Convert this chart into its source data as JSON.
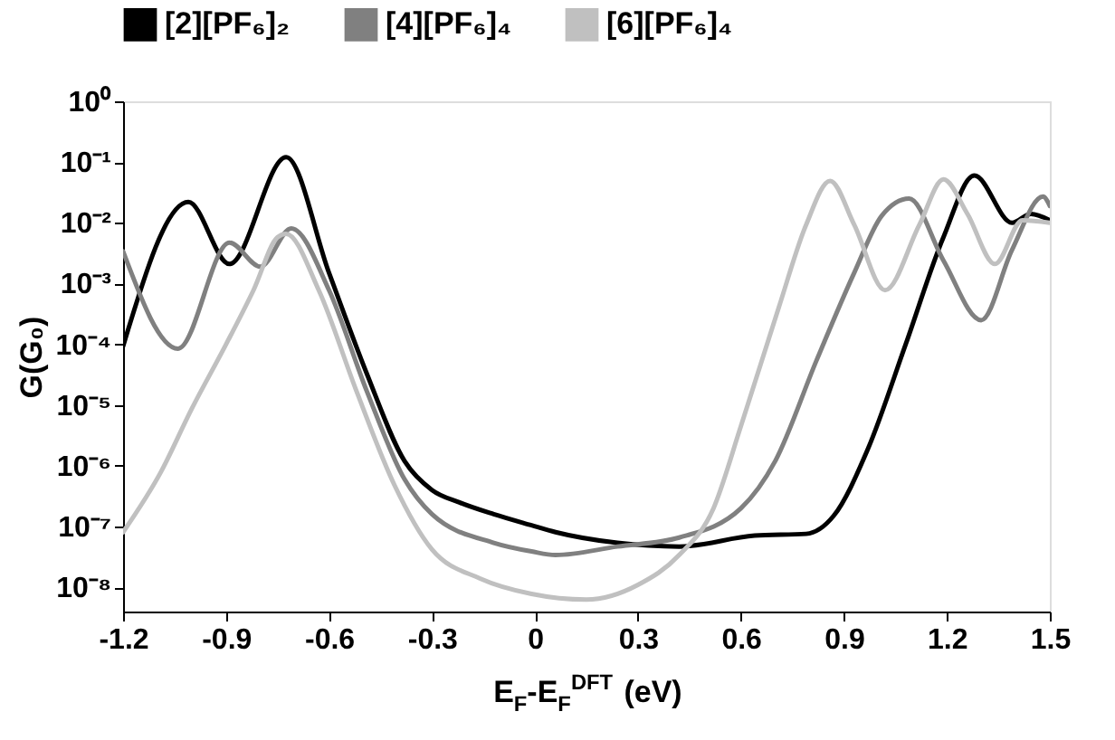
{
  "chart_data": {
    "type": "line",
    "xlabel": "E$_{F}$-E$_{F}$$^{DFT}$ (eV)",
    "ylabel": "G(G₀)",
    "log": "y",
    "grid": false,
    "legend": "top",
    "marker": "none",
    "line_style": "solid",
    "xlim": [
      -1.2,
      1.5
    ],
    "xticks": [
      -1.2,
      -0.9,
      -0.6,
      -0.3,
      0,
      0.3,
      0.6,
      0.9,
      1.2,
      1.5
    ],
    "ylim": [
      4e-09,
      1
    ],
    "yticks": [
      {
        "value": 1e-08,
        "label": "10⁻⁸"
      },
      {
        "value": 1e-07,
        "label": "10⁻⁷"
      },
      {
        "value": 1e-06,
        "label": "10⁻⁶"
      },
      {
        "value": 1e-05,
        "label": "10⁻⁵"
      },
      {
        "value": 0.0001,
        "label": "10⁻⁴"
      },
      {
        "value": 0.001,
        "label": "10⁻³"
      },
      {
        "value": 0.01,
        "label": "10⁻²"
      },
      {
        "value": 0.1,
        "label": "10⁻¹"
      },
      {
        "value": 1,
        "label": "10⁰"
      }
    ],
    "series": [
      {
        "name": "[2][PF₆]₂",
        "color": "#000000",
        "x": [
          -1.2,
          -1.01,
          -0.89,
          -0.725,
          -0.6,
          -0.49,
          -0.38,
          -0.3,
          -0.22,
          -0.12,
          -0.01,
          0.06,
          0.24,
          0.42,
          0.64,
          0.79,
          0.87,
          0.97,
          1.08,
          1.19,
          1.28,
          1.39,
          1.445,
          1.5
        ],
        "values": [
          9.3e-05,
          0.022,
          0.0021,
          0.12,
          0.0015,
          3.3e-05,
          1.2e-06,
          4e-07,
          2.5e-07,
          1.6e-07,
          1.05e-07,
          8.1e-08,
          5.4e-08,
          4.7e-08,
          7.1e-08,
          7.6e-08,
          1.5e-07,
          1.9e-06,
          0.0001,
          0.0058,
          0.06,
          0.01,
          0.014,
          0.011
        ]
      },
      {
        "name": "[4][PF₆]₄",
        "color": "#808080",
        "x": [
          -1.2,
          -1.04,
          -0.89,
          -0.8,
          -0.71,
          -0.6,
          -0.49,
          -0.38,
          -0.3,
          -0.12,
          -0.01,
          0.06,
          0.24,
          0.42,
          0.6,
          0.7,
          0.82,
          0.93,
          1.01,
          1.09,
          1.19,
          1.3,
          1.39,
          1.48,
          1.5
        ],
        "values": [
          0.0034,
          8.5e-05,
          0.0047,
          0.0019,
          0.0081,
          0.00078,
          1.7e-05,
          6e-07,
          1.6e-07,
          5.4e-08,
          3.9e-08,
          3.4e-08,
          4.7e-08,
          6.6e-08,
          2e-07,
          1.2e-06,
          5.4e-05,
          0.0015,
          0.013,
          0.025,
          0.0024,
          0.00025,
          0.0036,
          0.027,
          0.019
        ]
      },
      {
        "name": "[6][PF₆]₄",
        "color": "#c0c0c0",
        "x": [
          -1.2,
          -1.09,
          -1.0,
          -0.9,
          -0.82,
          -0.75,
          -0.725,
          -0.63,
          -0.52,
          -0.41,
          -0.3,
          -0.16,
          -0.01,
          0.15,
          0.3,
          0.42,
          0.52,
          0.6,
          0.71,
          0.79,
          0.86,
          0.93,
          1.02,
          1.12,
          1.19,
          1.26,
          1.34,
          1.42,
          1.5
        ],
        "values": [
          8.1e-08,
          7.9e-07,
          8.7e-06,
          0.0001,
          0.00078,
          0.0058,
          0.0066,
          0.00078,
          1.7e-05,
          4.9e-07,
          4.2e-08,
          1.4e-08,
          7.8e-09,
          6.3e-09,
          1.1e-08,
          3.4e-08,
          2e-07,
          4.5e-06,
          0.0004,
          0.0093,
          0.049,
          0.0093,
          0.00078,
          0.0093,
          0.052,
          0.014,
          0.0021,
          0.011,
          0.01
        ]
      }
    ]
  }
}
